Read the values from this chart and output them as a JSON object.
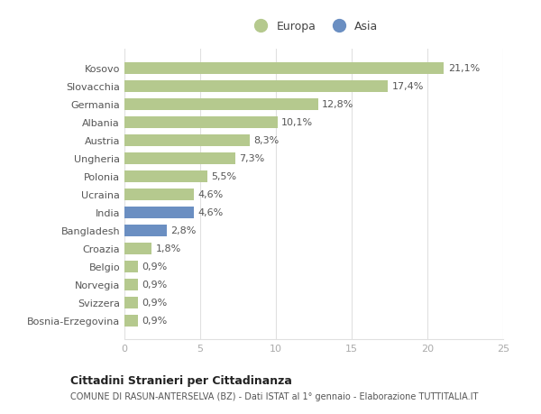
{
  "categories": [
    "Kosovo",
    "Slovacchia",
    "Germania",
    "Albania",
    "Austria",
    "Ungheria",
    "Polonia",
    "Ucraina",
    "India",
    "Bangladesh",
    "Croazia",
    "Belgio",
    "Norvegia",
    "Svizzera",
    "Bosnia-Erzegovina"
  ],
  "values": [
    21.1,
    17.4,
    12.8,
    10.1,
    8.3,
    7.3,
    5.5,
    4.6,
    4.6,
    2.8,
    1.8,
    0.9,
    0.9,
    0.9,
    0.9
  ],
  "labels": [
    "21,1%",
    "17,4%",
    "12,8%",
    "10,1%",
    "8,3%",
    "7,3%",
    "5,5%",
    "4,6%",
    "4,6%",
    "2,8%",
    "1,8%",
    "0,9%",
    "0,9%",
    "0,9%",
    "0,9%"
  ],
  "colors": [
    "#b5c98e",
    "#b5c98e",
    "#b5c98e",
    "#b5c98e",
    "#b5c98e",
    "#b5c98e",
    "#b5c98e",
    "#b5c98e",
    "#6b8fc2",
    "#6b8fc2",
    "#b5c98e",
    "#b5c98e",
    "#b5c98e",
    "#b5c98e",
    "#b5c98e"
  ],
  "europa_color": "#b5c98e",
  "asia_color": "#6b8fc2",
  "xlim": [
    0,
    25
  ],
  "xticks": [
    0,
    5,
    10,
    15,
    20,
    25
  ],
  "title": "Cittadini Stranieri per Cittadinanza",
  "subtitle": "COMUNE DI RASUN-ANTERSELVA (BZ) - Dati ISTAT al 1° gennaio - Elaborazione TUTTITALIA.IT",
  "legend_europa": "Europa",
  "legend_asia": "Asia",
  "background_color": "#ffffff",
  "bar_height": 0.65,
  "grid_color": "#e0e0e0",
  "label_color": "#555555",
  "ytick_color": "#555555",
  "xtick_color": "#aaaaaa"
}
